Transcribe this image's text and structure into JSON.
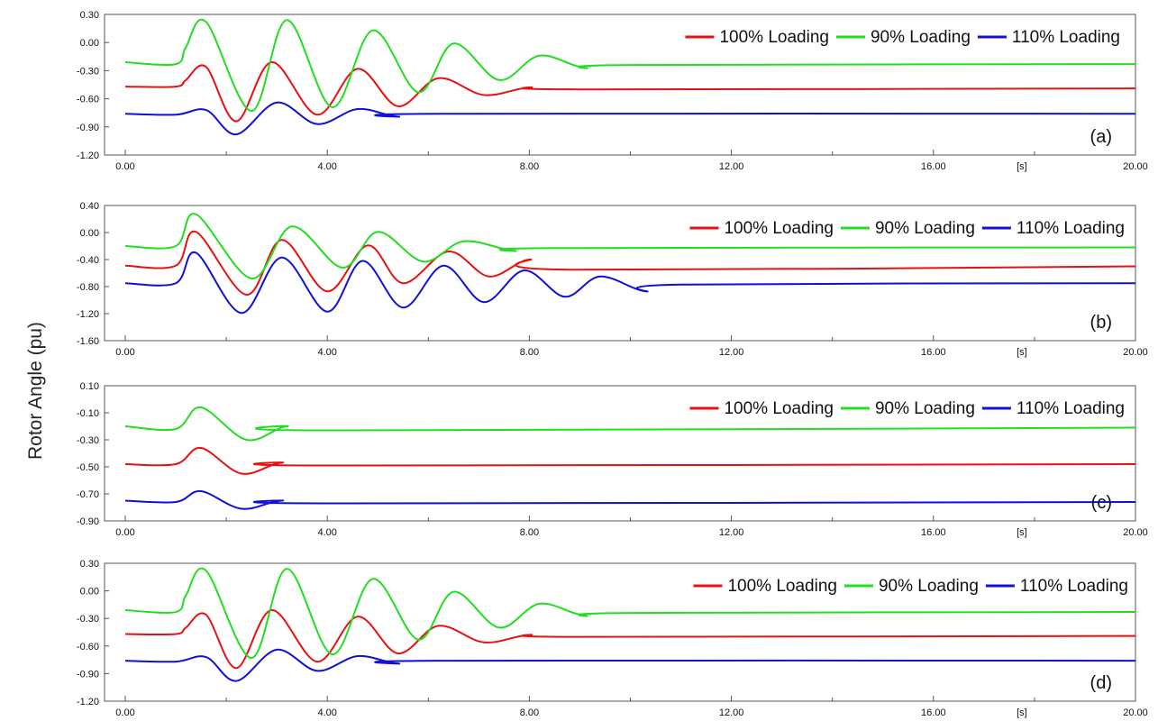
{
  "figure": {
    "ylabel": "Rotor Angle (pu)",
    "x_unit": "[s]"
  },
  "colors": {
    "red": "#e81010",
    "green": "#22dd22",
    "blue": "#1010d8"
  },
  "chart_data": [
    {
      "type": "line",
      "panel_label": "(a)",
      "xlim": [
        0,
        20
      ],
      "ylim": [
        -1.2,
        0.3
      ],
      "x_ticks": [
        "0.00",
        "4.00",
        "8.00",
        "12.00",
        "16.00",
        "20.00"
      ],
      "y_ticks": [
        "0.30",
        "0.00",
        "-0.30",
        "-0.60",
        "-0.90",
        "-1.20"
      ],
      "x_unit_label": "[s]",
      "legend_position": "top-right",
      "series": [
        {
          "name": "100% Loading",
          "color": "#e81010",
          "x": [
            0,
            1,
            1.2,
            1.6,
            2.2,
            2.9,
            3.8,
            4.6,
            5.4,
            6.2,
            7.1,
            8.0,
            9.0,
            20
          ],
          "y": [
            -0.47,
            -0.47,
            -0.4,
            -0.26,
            -0.84,
            -0.21,
            -0.77,
            -0.28,
            -0.68,
            -0.38,
            -0.56,
            -0.48,
            -0.5,
            -0.49
          ]
        },
        {
          "name": "90% Loading",
          "color": "#22dd22",
          "x": [
            0,
            1,
            1.2,
            1.6,
            2.5,
            3.2,
            4.1,
            4.9,
            5.8,
            6.5,
            7.4,
            8.2,
            9.1,
            10,
            20
          ],
          "y": [
            -0.21,
            -0.23,
            -0.05,
            0.22,
            -0.73,
            0.24,
            -0.69,
            0.13,
            -0.53,
            -0.01,
            -0.4,
            -0.14,
            -0.27,
            -0.24,
            -0.23
          ]
        },
        {
          "name": "110% Loading",
          "color": "#1010d8",
          "x": [
            0,
            1,
            1.6,
            2.2,
            3.0,
            3.8,
            4.6,
            5.4,
            6.2,
            20
          ],
          "y": [
            -0.76,
            -0.77,
            -0.72,
            -0.98,
            -0.64,
            -0.87,
            -0.71,
            -0.79,
            -0.76,
            -0.76
          ]
        }
      ]
    },
    {
      "type": "line",
      "panel_label": "(b)",
      "xlim": [
        0,
        20
      ],
      "ylim": [
        -1.6,
        0.4
      ],
      "x_ticks": [
        "0.00",
        "4.00",
        "8.00",
        "12.00",
        "16.00",
        "20.00"
      ],
      "y_ticks": [
        "0.40",
        "0.00",
        "-0.40",
        "-0.80",
        "-1.20",
        "-1.60"
      ],
      "x_unit_label": "[s]",
      "legend_position": "top-right",
      "series": [
        {
          "name": "100% Loading",
          "color": "#e81010",
          "x": [
            0,
            1,
            1.4,
            2.4,
            3.1,
            4.0,
            4.8,
            5.5,
            6.4,
            7.2,
            8.0,
            8.8,
            20
          ],
          "y": [
            -0.49,
            -0.49,
            0.01,
            -0.92,
            -0.11,
            -0.87,
            -0.19,
            -0.75,
            -0.28,
            -0.65,
            -0.4,
            -0.55,
            -0.5
          ]
        },
        {
          "name": "90% Loading",
          "color": "#22dd22",
          "x": [
            0,
            1,
            1.4,
            2.5,
            3.3,
            4.3,
            5.0,
            5.9,
            6.7,
            7.7,
            8.5,
            20
          ],
          "y": [
            -0.2,
            -0.2,
            0.27,
            -0.68,
            0.09,
            -0.52,
            0.01,
            -0.43,
            -0.13,
            -0.27,
            -0.23,
            -0.22
          ]
        },
        {
          "name": "110% Loading",
          "color": "#1010d8",
          "x": [
            0,
            1,
            1.4,
            2.3,
            3.1,
            4.0,
            4.7,
            5.5,
            6.3,
            7.1,
            7.9,
            8.7,
            9.4,
            10.3,
            11,
            20
          ],
          "y": [
            -0.75,
            -0.75,
            -0.3,
            -1.19,
            -0.37,
            -1.17,
            -0.42,
            -1.11,
            -0.49,
            -1.03,
            -0.56,
            -0.95,
            -0.65,
            -0.87,
            -0.77,
            -0.75
          ]
        }
      ]
    },
    {
      "type": "line",
      "panel_label": "(c)",
      "xlim": [
        0,
        20
      ],
      "ylim": [
        -0.9,
        0.1
      ],
      "x_ticks": [
        "0.00",
        "4.00",
        "8.00",
        "12.00",
        "16.00",
        "20.00"
      ],
      "y_ticks": [
        "0.10",
        "-0.10",
        "-0.30",
        "-0.50",
        "-0.70",
        "-0.90"
      ],
      "x_unit_label": "[s]",
      "legend_position": "top-right",
      "series": [
        {
          "name": "100% Loading",
          "color": "#e81010",
          "x": [
            0,
            1,
            1.5,
            2.3,
            3.1,
            4,
            20
          ],
          "y": [
            -0.48,
            -0.48,
            -0.36,
            -0.55,
            -0.47,
            -0.49,
            -0.48
          ]
        },
        {
          "name": "90% Loading",
          "color": "#22dd22",
          "x": [
            0,
            1,
            1.5,
            2.4,
            3.2,
            4,
            20
          ],
          "y": [
            -0.2,
            -0.22,
            -0.06,
            -0.3,
            -0.2,
            -0.23,
            -0.21
          ]
        },
        {
          "name": "110% Loading",
          "color": "#1010d8",
          "x": [
            0,
            1,
            1.5,
            2.3,
            3.1,
            4,
            20
          ],
          "y": [
            -0.75,
            -0.76,
            -0.68,
            -0.81,
            -0.75,
            -0.77,
            -0.76
          ]
        }
      ]
    },
    {
      "type": "line",
      "panel_label": "(d)",
      "xlim": [
        0,
        20
      ],
      "ylim": [
        -1.2,
        0.3
      ],
      "x_ticks": [
        "0.00",
        "4.00",
        "8.00",
        "12.00",
        "16.00",
        "20.00"
      ],
      "y_ticks": [
        "0.30",
        "0.00",
        "-0.30",
        "-0.60",
        "-0.90",
        "-1.20"
      ],
      "x_unit_label": "[s]",
      "legend_position": "top-right",
      "series": [
        {
          "name": "100% Loading",
          "color": "#e81010",
          "x": [
            0,
            1,
            1.2,
            1.6,
            2.2,
            2.9,
            3.8,
            4.6,
            5.4,
            6.2,
            7.1,
            8.0,
            9.0,
            20
          ],
          "y": [
            -0.47,
            -0.47,
            -0.4,
            -0.26,
            -0.84,
            -0.21,
            -0.77,
            -0.28,
            -0.68,
            -0.38,
            -0.56,
            -0.48,
            -0.5,
            -0.49
          ]
        },
        {
          "name": "90% Loading",
          "color": "#22dd22",
          "x": [
            0,
            1,
            1.2,
            1.6,
            2.5,
            3.2,
            4.1,
            4.9,
            5.8,
            6.5,
            7.4,
            8.2,
            9.1,
            10,
            20
          ],
          "y": [
            -0.21,
            -0.23,
            -0.05,
            0.22,
            -0.73,
            0.24,
            -0.69,
            0.13,
            -0.53,
            -0.01,
            -0.4,
            -0.14,
            -0.27,
            -0.24,
            -0.23
          ]
        },
        {
          "name": "110% Loading",
          "color": "#1010d8",
          "x": [
            0,
            1,
            1.6,
            2.2,
            3.0,
            3.8,
            4.6,
            5.4,
            6.2,
            20
          ],
          "y": [
            -0.76,
            -0.77,
            -0.72,
            -0.98,
            -0.64,
            -0.87,
            -0.71,
            -0.79,
            -0.76,
            -0.76
          ]
        }
      ]
    }
  ]
}
